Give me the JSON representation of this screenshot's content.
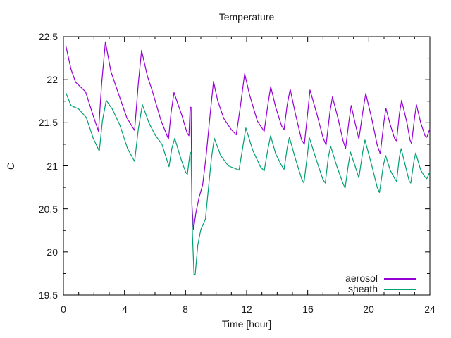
{
  "window": {
    "background": "#ffffff"
  },
  "chart_data": {
    "type": "line",
    "title": "Temperature",
    "xlabel": "Time [hour]",
    "ylabel": "C",
    "xlim": [
      0,
      24
    ],
    "ylim": [
      19.5,
      22.5
    ],
    "xtick_values": [
      0,
      4,
      8,
      12,
      16,
      20,
      24
    ],
    "xtick_labels": [
      "0",
      "4",
      "8",
      "12",
      "16",
      "20",
      "24"
    ],
    "x_minor_step": 1,
    "ytick_values": [
      19.5,
      20,
      20.5,
      21,
      21.5,
      22,
      22.5
    ],
    "ytick_labels": [
      "19.5",
      "20",
      "20.5",
      "21",
      "21.5",
      "22",
      "22.5"
    ],
    "y_minor_step": 0.25,
    "grid": false,
    "axis_color": "#000000",
    "text_color": "#1c1c1c",
    "legend_position": "bottom-right-inside",
    "series": [
      {
        "name": "aerosol",
        "color": "#9400d3",
        "points": [
          [
            0.15,
            22.4
          ],
          [
            0.5,
            22.12
          ],
          [
            0.8,
            21.97
          ],
          [
            1.45,
            21.86
          ],
          [
            1.95,
            21.58
          ],
          [
            2.3,
            21.4
          ],
          [
            2.5,
            21.95
          ],
          [
            2.75,
            22.44
          ],
          [
            3.1,
            22.1
          ],
          [
            3.6,
            21.84
          ],
          [
            4.15,
            21.56
          ],
          [
            4.66,
            21.41
          ],
          [
            4.9,
            21.95
          ],
          [
            5.12,
            22.34
          ],
          [
            5.5,
            22.04
          ],
          [
            5.8,
            21.88
          ],
          [
            6.4,
            21.52
          ],
          [
            6.88,
            21.31
          ],
          [
            7.05,
            21.62
          ],
          [
            7.24,
            21.85
          ],
          [
            7.75,
            21.59
          ],
          [
            8.1,
            21.38
          ],
          [
            8.22,
            21.35
          ],
          [
            8.3,
            21.68
          ],
          [
            8.36,
            21.68
          ],
          [
            8.42,
            20.55
          ],
          [
            8.52,
            20.26
          ],
          [
            8.68,
            20.46
          ],
          [
            8.88,
            20.63
          ],
          [
            9.12,
            20.78
          ],
          [
            9.35,
            21.12
          ],
          [
            9.6,
            21.58
          ],
          [
            9.83,
            21.98
          ],
          [
            10.1,
            21.76
          ],
          [
            10.5,
            21.55
          ],
          [
            11.0,
            21.42
          ],
          [
            11.32,
            21.36
          ],
          [
            11.6,
            21.7
          ],
          [
            11.87,
            22.07
          ],
          [
            12.2,
            21.82
          ],
          [
            12.7,
            21.52
          ],
          [
            13.15,
            21.4
          ],
          [
            13.4,
            21.72
          ],
          [
            13.58,
            21.92
          ],
          [
            13.9,
            21.68
          ],
          [
            14.3,
            21.46
          ],
          [
            14.45,
            21.42
          ],
          [
            14.65,
            21.7
          ],
          [
            14.85,
            21.89
          ],
          [
            15.2,
            21.6
          ],
          [
            15.6,
            21.3
          ],
          [
            15.78,
            21.25
          ],
          [
            16.0,
            21.62
          ],
          [
            16.15,
            21.88
          ],
          [
            16.6,
            21.6
          ],
          [
            17.0,
            21.33
          ],
          [
            17.2,
            21.24
          ],
          [
            17.45,
            21.62
          ],
          [
            17.62,
            21.8
          ],
          [
            18.0,
            21.54
          ],
          [
            18.3,
            21.3
          ],
          [
            18.48,
            21.2
          ],
          [
            18.7,
            21.52
          ],
          [
            18.85,
            21.7
          ],
          [
            19.1,
            21.5
          ],
          [
            19.35,
            21.31
          ],
          [
            19.6,
            21.62
          ],
          [
            19.8,
            21.84
          ],
          [
            20.2,
            21.54
          ],
          [
            20.55,
            21.24
          ],
          [
            20.75,
            21.14
          ],
          [
            21.0,
            21.52
          ],
          [
            21.12,
            21.67
          ],
          [
            21.4,
            21.48
          ],
          [
            21.7,
            21.31
          ],
          [
            21.82,
            21.29
          ],
          [
            22.0,
            21.6
          ],
          [
            22.15,
            21.76
          ],
          [
            22.5,
            21.5
          ],
          [
            22.7,
            21.3
          ],
          [
            22.8,
            21.26
          ],
          [
            23.0,
            21.56
          ],
          [
            23.12,
            21.71
          ],
          [
            23.4,
            21.5
          ],
          [
            23.68,
            21.35
          ],
          [
            23.8,
            21.33
          ],
          [
            24,
            21.43
          ]
        ]
      },
      {
        "name": "sheath",
        "color": "#009e73",
        "points": [
          [
            0.15,
            21.85
          ],
          [
            0.5,
            21.7
          ],
          [
            1.0,
            21.66
          ],
          [
            1.5,
            21.56
          ],
          [
            1.95,
            21.32
          ],
          [
            2.35,
            21.17
          ],
          [
            2.55,
            21.52
          ],
          [
            2.8,
            21.76
          ],
          [
            3.2,
            21.66
          ],
          [
            3.7,
            21.47
          ],
          [
            4.2,
            21.2
          ],
          [
            4.66,
            21.05
          ],
          [
            4.9,
            21.42
          ],
          [
            5.17,
            21.71
          ],
          [
            5.6,
            21.5
          ],
          [
            6.0,
            21.36
          ],
          [
            6.45,
            21.25
          ],
          [
            6.92,
            20.99
          ],
          [
            7.1,
            21.2
          ],
          [
            7.29,
            21.32
          ],
          [
            7.7,
            21.08
          ],
          [
            8.0,
            20.93
          ],
          [
            8.12,
            20.9
          ],
          [
            8.3,
            21.16
          ],
          [
            8.36,
            21.14
          ],
          [
            8.45,
            20.2
          ],
          [
            8.55,
            19.74
          ],
          [
            8.63,
            19.74
          ],
          [
            8.8,
            20.08
          ],
          [
            9.0,
            20.26
          ],
          [
            9.3,
            20.38
          ],
          [
            9.5,
            20.74
          ],
          [
            9.7,
            21.1
          ],
          [
            9.88,
            21.32
          ],
          [
            10.3,
            21.12
          ],
          [
            10.8,
            21.0
          ],
          [
            11.5,
            20.95
          ],
          [
            11.75,
            21.22
          ],
          [
            11.95,
            21.44
          ],
          [
            12.4,
            21.18
          ],
          [
            12.9,
            20.99
          ],
          [
            13.15,
            20.94
          ],
          [
            13.4,
            21.2
          ],
          [
            13.57,
            21.35
          ],
          [
            13.9,
            21.14
          ],
          [
            14.3,
            21.0
          ],
          [
            14.45,
            20.96
          ],
          [
            14.65,
            21.2
          ],
          [
            14.8,
            21.33
          ],
          [
            15.2,
            21.08
          ],
          [
            15.6,
            20.85
          ],
          [
            15.75,
            20.8
          ],
          [
            16.0,
            21.16
          ],
          [
            16.1,
            21.33
          ],
          [
            16.6,
            21.05
          ],
          [
            17.0,
            20.84
          ],
          [
            17.15,
            20.8
          ],
          [
            17.35,
            21.1
          ],
          [
            17.5,
            21.23
          ],
          [
            17.9,
            21.0
          ],
          [
            18.3,
            20.8
          ],
          [
            18.45,
            20.74
          ],
          [
            18.65,
            21.0
          ],
          [
            18.8,
            21.16
          ],
          [
            19.1,
            21.0
          ],
          [
            19.35,
            20.86
          ],
          [
            19.6,
            21.16
          ],
          [
            19.75,
            21.3
          ],
          [
            20.2,
            21.0
          ],
          [
            20.55,
            20.75
          ],
          [
            20.7,
            20.69
          ],
          [
            20.95,
            21.0
          ],
          [
            21.1,
            21.12
          ],
          [
            21.4,
            20.95
          ],
          [
            21.7,
            20.85
          ],
          [
            21.82,
            20.82
          ],
          [
            22.0,
            21.1
          ],
          [
            22.12,
            21.2
          ],
          [
            22.4,
            21.0
          ],
          [
            22.65,
            20.82
          ],
          [
            22.75,
            20.8
          ],
          [
            22.95,
            21.05
          ],
          [
            23.07,
            21.15
          ],
          [
            23.4,
            20.95
          ],
          [
            23.68,
            20.87
          ],
          [
            23.8,
            20.85
          ],
          [
            24,
            20.93
          ]
        ]
      }
    ]
  }
}
